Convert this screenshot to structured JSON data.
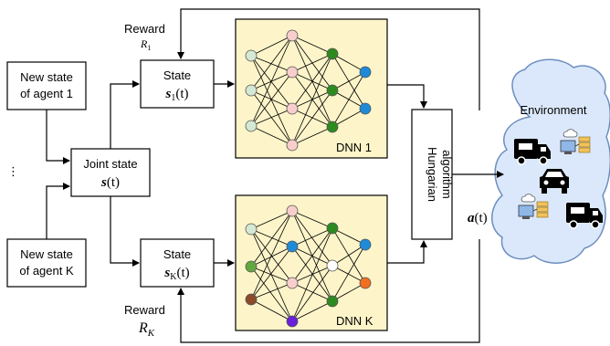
{
  "agent1_box": {
    "line1": "New state",
    "line2": "of agent 1"
  },
  "agentk_box": {
    "line1": "New state",
    "line2": "of agent K"
  },
  "ellipsis": "⋮",
  "joint_state": {
    "label": "Joint state",
    "symbol": "s",
    "arg": "(t)"
  },
  "state1": {
    "label": "State",
    "symbol": "s",
    "sub": "1",
    "arg": "(t)"
  },
  "statek": {
    "label": "State",
    "symbol": "s",
    "sub": "K",
    "arg": "(t)"
  },
  "reward1": {
    "label": "Reward",
    "symbol": "R",
    "sub": "1"
  },
  "rewardk": {
    "label": "Reward",
    "symbol": "R",
    "sub": "K"
  },
  "dnn1": {
    "label": "DNN 1",
    "bg": "#fdf5c9"
  },
  "dnnk": {
    "label": "DNN K",
    "bg": "#fdf5c9"
  },
  "hungarian": {
    "line1": "Hungarian",
    "line2": "algorithm"
  },
  "action": {
    "symbol": "a",
    "arg": "(t)"
  },
  "environment": {
    "label": "Environment",
    "cloud_fill": "#dbe8fb",
    "cloud_stroke": "#6c8ebf"
  },
  "colors": {
    "light_green": "#d5e8d4",
    "pink": "#f8cecc",
    "green": "#2d8a1f",
    "blue": "#1f8ad8",
    "olive": "#63a83f",
    "brown": "#8b4a2a",
    "purple": "#6a1fd8",
    "white": "#ffffff",
    "orange": "#f07020",
    "edge": "#000000"
  }
}
